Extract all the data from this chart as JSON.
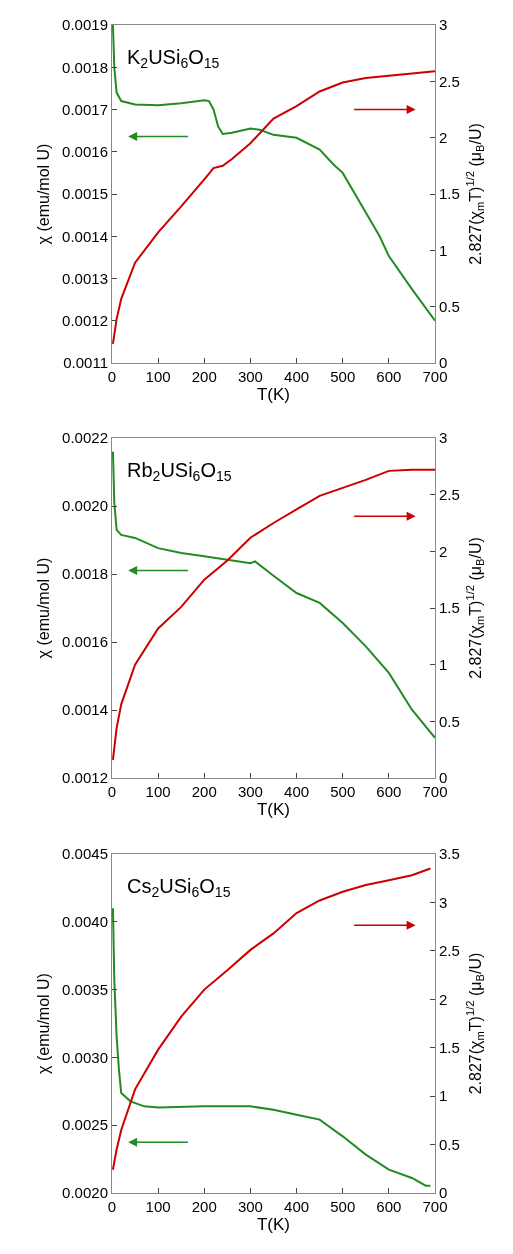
{
  "chart_data": [
    {
      "type": "line",
      "annotations": [
        "K$_{2}$USi$_{6}$O$_{15}$"
      ],
      "xlabel": "T(K)",
      "ylabel": "χ (emu/mol U)",
      "y2label": "2.827(χ$_{m}$T)$^{1/2}$ (μ$_{B}$/U)",
      "xlim": [
        0,
        700
      ],
      "xticks": [
        0,
        100,
        200,
        300,
        400,
        500,
        600,
        700
      ],
      "ylim": [
        0.0011,
        0.0019
      ],
      "yticks": [
        0.0011,
        0.0012,
        0.0013,
        0.0014,
        0.0015,
        0.0016,
        0.0017,
        0.0018,
        0.0019
      ],
      "y2lim": [
        0,
        3
      ],
      "y2ticks": [
        0,
        0.5,
        1,
        1.5,
        2,
        2.5,
        3
      ],
      "series": [
        {
          "color": "#228b22",
          "axis": "y",
          "x": [
            2,
            5,
            10,
            20,
            50,
            100,
            150,
            200,
            210,
            220,
            230,
            240,
            260,
            300,
            320,
            350,
            400,
            450,
            480,
            500,
            550,
            580,
            600,
            650,
            700
          ],
          "values": [
            0.0019,
            0.0018,
            0.00174,
            0.00172,
            0.001712,
            0.00171,
            0.001715,
            0.001722,
            0.00172,
            0.0017,
            0.00166,
            0.001642,
            0.001645,
            0.001655,
            0.001652,
            0.00164,
            0.001633,
            0.001605,
            0.00157,
            0.00155,
            0.001456,
            0.0014,
            0.001353,
            0.001275,
            0.0012
          ]
        },
        {
          "color": "#cc0000",
          "axis": "y2",
          "x": [
            2,
            10,
            20,
            50,
            100,
            150,
            200,
            220,
            240,
            260,
            300,
            350,
            400,
            450,
            500,
            550,
            600,
            650,
            700
          ],
          "values": [
            0.17,
            0.39,
            0.57,
            0.89,
            1.16,
            1.39,
            1.63,
            1.73,
            1.75,
            1.81,
            1.95,
            2.17,
            2.28,
            2.41,
            2.49,
            2.53,
            2.55,
            2.57,
            2.59
          ]
        }
      ]
    },
    {
      "type": "line",
      "annotations": [
        "Rb$_{2}$USi$_{6}$O$_{15}$"
      ],
      "xlabel": "T(K)",
      "ylabel": "χ (emu/mol U)",
      "y2label": "2.827(χ$_{m}$T)$^{1/2}$ (μ$_{B}$/U)",
      "xlim": [
        0,
        700
      ],
      "xticks": [
        0,
        100,
        200,
        300,
        400,
        500,
        600,
        700
      ],
      "ylim": [
        0.0012,
        0.0022
      ],
      "yticks": [
        0.0012,
        0.0014,
        0.0016,
        0.0018,
        {
          "value": 0.002,
          "label": "0.0020"
        },
        0.0022
      ],
      "y2lim": [
        0,
        3
      ],
      "y2ticks": [
        0,
        0.5,
        1,
        1.5,
        2,
        2.5,
        3
      ],
      "series": [
        {
          "color": "#228b22",
          "axis": "y",
          "x": [
            2,
            5,
            10,
            20,
            50,
            100,
            150,
            200,
            250,
            300,
            310,
            350,
            400,
            450,
            500,
            550,
            600,
            650,
            700
          ],
          "values": [
            0.00216,
            0.00201,
            0.00193,
            0.001915,
            0.001906,
            0.001876,
            0.001862,
            0.001852,
            0.001842,
            0.001832,
            0.001837,
            0.001795,
            0.001744,
            0.001715,
            0.001656,
            0.001587,
            0.001509,
            0.001401,
            0.001318
          ]
        },
        {
          "color": "#cc0000",
          "axis": "y2",
          "x": [
            2,
            10,
            20,
            50,
            100,
            150,
            200,
            250,
            300,
            350,
            400,
            450,
            500,
            550,
            600,
            650,
            700
          ],
          "values": [
            0.16,
            0.44,
            0.65,
            1.0,
            1.32,
            1.51,
            1.75,
            1.92,
            2.12,
            2.25,
            2.37,
            2.49,
            2.56,
            2.63,
            2.71,
            2.72,
            2.72
          ]
        }
      ]
    },
    {
      "type": "line",
      "annotations": [
        "Cs$_{2}$USi$_{6}$O$_{15}$"
      ],
      "xlabel": "T(K)",
      "ylabel": "χ (emu/mol U)",
      "y2label": "2.827(χ$_{m}$T)$^{1/2}$ (μ$_{B}$/U)",
      "xlim": [
        0,
        700
      ],
      "xticks": [
        0,
        100,
        200,
        300,
        400,
        500,
        600,
        700
      ],
      "ylim": [
        0.002,
        0.0045
      ],
      "yticks": [
        {
          "value": 0.002,
          "label": "0.0020"
        },
        0.0025,
        {
          "value": 0.003,
          "label": "0.0030"
        },
        0.0035,
        {
          "value": 0.004,
          "label": "0.0040"
        },
        0.0045
      ],
      "y2lim": [
        0,
        3.5
      ],
      "y2ticks": [
        0,
        0.5,
        1,
        1.5,
        2,
        2.5,
        3,
        3.5
      ],
      "series": [
        {
          "color": "#228b22",
          "axis": "y",
          "x": [
            2,
            5,
            10,
            15,
            20,
            40,
            70,
            100,
            200,
            300,
            350,
            400,
            450,
            500,
            550,
            600,
            650,
            680,
            690
          ],
          "values": [
            0.0041,
            0.00357,
            0.003155,
            0.00291,
            0.002737,
            0.002676,
            0.002639,
            0.002631,
            0.002639,
            0.002639,
            0.002614,
            0.002577,
            0.002541,
            0.002418,
            0.002283,
            0.002172,
            0.002111,
            0.002054,
            0.002054
          ]
        },
        {
          "color": "#cc0000",
          "axis": "y2",
          "x": [
            2,
            10,
            20,
            50,
            100,
            150,
            200,
            250,
            300,
            350,
            400,
            450,
            500,
            550,
            600,
            650,
            690
          ],
          "values": [
            0.24,
            0.45,
            0.65,
            1.07,
            1.48,
            1.82,
            2.1,
            2.3,
            2.51,
            2.68,
            2.89,
            3.02,
            3.11,
            3.18,
            3.23,
            3.28,
            3.35
          ]
        }
      ]
    }
  ]
}
